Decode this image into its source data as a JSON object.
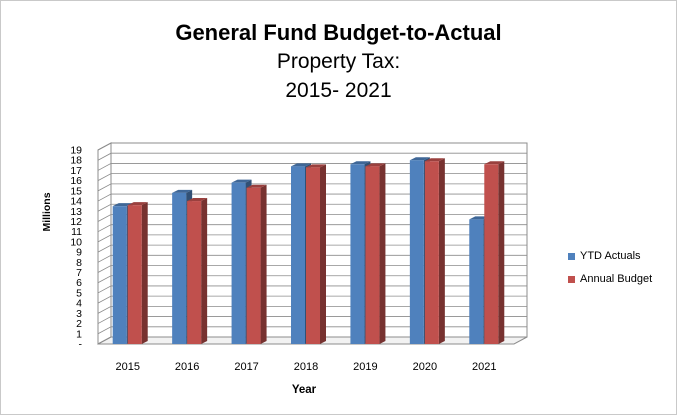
{
  "chart_data": {
    "type": "bar",
    "title": "General Fund Budget-to-Actual",
    "subtitle": "Property Tax:",
    "subtitle2": "2015- 2021",
    "xlabel": "Year",
    "ylabel": "Millions",
    "categories": [
      "2015",
      "2016",
      "2017",
      "2018",
      "2019",
      "2020",
      "2021"
    ],
    "y_ticks": [
      "-",
      "1",
      "2",
      "3",
      "4",
      "5",
      "6",
      "7",
      "8",
      "9",
      "10",
      "11",
      "12",
      "13",
      "14",
      "15",
      "16",
      "17",
      "18",
      "19"
    ],
    "ylim": [
      0,
      19
    ],
    "grid": true,
    "legend_position": "right",
    "series": [
      {
        "name": "YTD Actuals",
        "color": "#4f81bd",
        "values": [
          13.5,
          14.8,
          15.8,
          17.4,
          17.6,
          18.0,
          12.2
        ]
      },
      {
        "name": "Annual Budget",
        "color": "#c0504d",
        "values": [
          13.6,
          14.0,
          15.3,
          17.3,
          17.4,
          17.9,
          17.6
        ]
      }
    ]
  }
}
